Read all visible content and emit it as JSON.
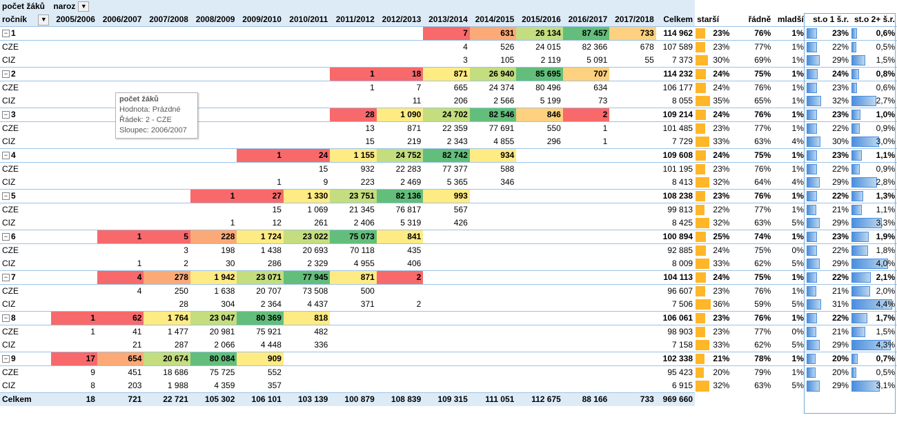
{
  "header": {
    "value_field": "počet žáků",
    "column_field": "naroz",
    "row_field": "ročník",
    "columns": [
      "2005/2006",
      "2006/2007",
      "2007/2008",
      "2008/2009",
      "2009/2010",
      "2010/2011",
      "2011/2012",
      "2012/2013",
      "2013/2014",
      "2014/2015",
      "2015/2016",
      "2016/2017",
      "2017/2018"
    ],
    "total_label": "Celkem",
    "extra_columns": [
      "starší",
      "řádně",
      "mladší",
      "st.o 1 š.r.",
      "st.o 2+ š.r."
    ]
  },
  "colors": {
    "header_bg": "#ddebf7",
    "red": "#f8696b",
    "orange": "#fbaa77",
    "light_orange": "#fdd17f",
    "yellow": "#ffeb84",
    "light_green": "#c4dd7f",
    "green": "#63be7b",
    "bar_orange": "#ffb628",
    "bar_blue": "#4a8ede"
  },
  "rows": [
    {
      "level": 1,
      "label": "1",
      "cells": [
        "",
        "",
        "",
        "",
        "",
        "",
        "",
        "",
        "7",
        "631",
        "26 134",
        "87 457",
        "733"
      ],
      "colors": [
        "",
        "",
        "",
        "",
        "",
        "",
        "",
        "",
        "red",
        "orange",
        "light_green",
        "green",
        "light_orange"
      ],
      "total": "114 962",
      "starsi": "23%",
      "radne": "76%",
      "mladsi": "1%",
      "st1": "23%",
      "st2": "0,6%",
      "b_starsi": 0.23,
      "b_st1": 0.23,
      "b_st2": 0.006
    },
    {
      "level": 2,
      "label": "CZE",
      "cells": [
        "",
        "",
        "",
        "",
        "",
        "",
        "",
        "",
        "4",
        "526",
        "24 015",
        "82 366",
        "678"
      ],
      "total": "107 589",
      "starsi": "23%",
      "radne": "77%",
      "mladsi": "1%",
      "st1": "22%",
      "st2": "0,5%",
      "b_starsi": 0.23,
      "b_st1": 0.22,
      "b_st2": 0.005
    },
    {
      "level": 2,
      "label": "CIZ",
      "cells": [
        "",
        "",
        "",
        "",
        "",
        "",
        "",
        "",
        "3",
        "105",
        "2 119",
        "5 091",
        "55"
      ],
      "total": "7 373",
      "starsi": "30%",
      "radne": "69%",
      "mladsi": "1%",
      "st1": "29%",
      "st2": "1,5%",
      "b_starsi": 0.3,
      "b_st1": 0.29,
      "b_st2": 0.015
    },
    {
      "level": 1,
      "label": "2",
      "cells": [
        "",
        "",
        "",
        "",
        "",
        "",
        "1",
        "18",
        "871",
        "26 940",
        "85 695",
        "707",
        ""
      ],
      "colors": [
        "",
        "",
        "",
        "",
        "",
        "",
        "red",
        "red",
        "yellow",
        "light_green",
        "green",
        "light_orange",
        ""
      ],
      "total": "114 232",
      "starsi": "24%",
      "radne": "75%",
      "mladsi": "1%",
      "st1": "24%",
      "st2": "0,8%",
      "b_starsi": 0.24,
      "b_st1": 0.24,
      "b_st2": 0.008
    },
    {
      "level": 2,
      "label": "CZE",
      "cells": [
        "",
        "",
        "",
        "",
        "",
        "",
        "1",
        "7",
        "665",
        "24 374",
        "80 496",
        "634",
        ""
      ],
      "total": "106 177",
      "starsi": "24%",
      "radne": "76%",
      "mladsi": "1%",
      "st1": "23%",
      "st2": "0,6%",
      "b_starsi": 0.24,
      "b_st1": 0.23,
      "b_st2": 0.006
    },
    {
      "level": 2,
      "label": "CIZ",
      "cells": [
        "",
        "",
        "",
        "",
        "",
        "",
        "",
        "11",
        "206",
        "2 566",
        "5 199",
        "73",
        ""
      ],
      "total": "8 055",
      "starsi": "35%",
      "radne": "65%",
      "mladsi": "1%",
      "st1": "32%",
      "st2": "2,7%",
      "b_starsi": 0.35,
      "b_st1": 0.32,
      "b_st2": 0.027
    },
    {
      "level": 1,
      "label": "3",
      "cells": [
        "",
        "",
        "",
        "",
        "",
        "",
        "28",
        "1 090",
        "24 702",
        "82 546",
        "846",
        "2",
        ""
      ],
      "colors": [
        "",
        "",
        "",
        "",
        "",
        "",
        "red",
        "yellow",
        "light_green",
        "green",
        "light_orange",
        "red",
        ""
      ],
      "total": "109 214",
      "starsi": "24%",
      "radne": "76%",
      "mladsi": "1%",
      "st1": "23%",
      "st2": "1,0%",
      "b_starsi": 0.24,
      "b_st1": 0.23,
      "b_st2": 0.01
    },
    {
      "level": 2,
      "label": "CZE",
      "cells": [
        "",
        "",
        "",
        "",
        "",
        "",
        "13",
        "871",
        "22 359",
        "77 691",
        "550",
        "1",
        ""
      ],
      "total": "101 485",
      "starsi": "23%",
      "radne": "77%",
      "mladsi": "1%",
      "st1": "22%",
      "st2": "0,9%",
      "b_starsi": 0.23,
      "b_st1": 0.22,
      "b_st2": 0.009
    },
    {
      "level": 2,
      "label": "CIZ",
      "cells": [
        "",
        "",
        "",
        "",
        "",
        "",
        "15",
        "219",
        "2 343",
        "4 855",
        "296",
        "1",
        ""
      ],
      "total": "7 729",
      "starsi": "33%",
      "radne": "63%",
      "mladsi": "4%",
      "st1": "30%",
      "st2": "3,0%",
      "b_starsi": 0.33,
      "b_st1": 0.3,
      "b_st2": 0.03
    },
    {
      "level": 1,
      "label": "4",
      "cells": [
        "",
        "",
        "",
        "",
        "1",
        "24",
        "1 155",
        "24 752",
        "82 742",
        "934",
        "",
        "",
        ""
      ],
      "colors": [
        "",
        "",
        "",
        "",
        "red",
        "red",
        "yellow",
        "light_green",
        "green",
        "yellow",
        "",
        "",
        ""
      ],
      "total": "109 608",
      "starsi": "24%",
      "radne": "75%",
      "mladsi": "1%",
      "st1": "23%",
      "st2": "1,1%",
      "b_starsi": 0.24,
      "b_st1": 0.23,
      "b_st2": 0.011
    },
    {
      "level": 2,
      "label": "CZE",
      "cells": [
        "",
        "",
        "",
        "",
        "",
        "15",
        "932",
        "22 283",
        "77 377",
        "588",
        "",
        "",
        ""
      ],
      "total": "101 195",
      "starsi": "23%",
      "radne": "76%",
      "mladsi": "1%",
      "st1": "22%",
      "st2": "0,9%",
      "b_starsi": 0.23,
      "b_st1": 0.22,
      "b_st2": 0.009
    },
    {
      "level": 2,
      "label": "CIZ",
      "cells": [
        "",
        "",
        "",
        "",
        "1",
        "9",
        "223",
        "2 469",
        "5 365",
        "346",
        "",
        "",
        ""
      ],
      "total": "8 413",
      "starsi": "32%",
      "radne": "64%",
      "mladsi": "4%",
      "st1": "29%",
      "st2": "2,8%",
      "b_starsi": 0.32,
      "b_st1": 0.29,
      "b_st2": 0.028
    },
    {
      "level": 1,
      "label": "5",
      "cells": [
        "",
        "",
        "",
        "1",
        "27",
        "1 330",
        "23 751",
        "82 136",
        "993",
        "",
        "",
        "",
        ""
      ],
      "colors": [
        "",
        "",
        "",
        "red",
        "red",
        "yellow",
        "light_green",
        "green",
        "yellow",
        "",
        "",
        "",
        ""
      ],
      "total": "108 238",
      "starsi": "23%",
      "radne": "76%",
      "mladsi": "1%",
      "st1": "22%",
      "st2": "1,3%",
      "b_starsi": 0.23,
      "b_st1": 0.22,
      "b_st2": 0.013
    },
    {
      "level": 2,
      "label": "CZE",
      "cells": [
        "",
        "",
        "",
        "",
        "15",
        "1 069",
        "21 345",
        "76 817",
        "567",
        "",
        "",
        "",
        ""
      ],
      "total": "99 813",
      "starsi": "22%",
      "radne": "77%",
      "mladsi": "1%",
      "st1": "21%",
      "st2": "1,1%",
      "b_starsi": 0.22,
      "b_st1": 0.21,
      "b_st2": 0.011
    },
    {
      "level": 2,
      "label": "CIZ",
      "cells": [
        "",
        "",
        "",
        "1",
        "12",
        "261",
        "2 406",
        "5 319",
        "426",
        "",
        "",
        "",
        ""
      ],
      "total": "8 425",
      "starsi": "32%",
      "radne": "63%",
      "mladsi": "5%",
      "st1": "29%",
      "st2": "3,3%",
      "b_starsi": 0.32,
      "b_st1": 0.29,
      "b_st2": 0.033
    },
    {
      "level": 1,
      "label": "6",
      "cells": [
        "",
        "1",
        "5",
        "228",
        "1 724",
        "23 022",
        "75 073",
        "841",
        "",
        "",
        "",
        "",
        ""
      ],
      "colors": [
        "",
        "red",
        "red",
        "orange",
        "yellow",
        "light_green",
        "green",
        "yellow",
        "",
        "",
        "",
        "",
        ""
      ],
      "total": "100 894",
      "starsi": "25%",
      "radne": "74%",
      "mladsi": "1%",
      "st1": "23%",
      "st2": "1,9%",
      "b_starsi": 0.25,
      "b_st1": 0.23,
      "b_st2": 0.019
    },
    {
      "level": 2,
      "label": "CZE",
      "cells": [
        "",
        "",
        "3",
        "198",
        "1 438",
        "20 693",
        "70 118",
        "435",
        "",
        "",
        "",
        "",
        ""
      ],
      "total": "92 885",
      "starsi": "24%",
      "radne": "75%",
      "mladsi": "0%",
      "st1": "22%",
      "st2": "1,8%",
      "b_starsi": 0.24,
      "b_st1": 0.22,
      "b_st2": 0.018
    },
    {
      "level": 2,
      "label": "CIZ",
      "cells": [
        "",
        "1",
        "2",
        "30",
        "286",
        "2 329",
        "4 955",
        "406",
        "",
        "",
        "",
        "",
        ""
      ],
      "total": "8 009",
      "starsi": "33%",
      "radne": "62%",
      "mladsi": "5%",
      "st1": "29%",
      "st2": "4,0%",
      "b_starsi": 0.33,
      "b_st1": 0.29,
      "b_st2": 0.04
    },
    {
      "level": 1,
      "label": "7",
      "cells": [
        "",
        "4",
        "278",
        "1 942",
        "23 071",
        "77 945",
        "871",
        "2",
        "",
        "",
        "",
        "",
        ""
      ],
      "colors": [
        "",
        "red",
        "orange",
        "yellow",
        "light_green",
        "green",
        "yellow",
        "red",
        "",
        "",
        "",
        "",
        ""
      ],
      "total": "104 113",
      "starsi": "24%",
      "radne": "75%",
      "mladsi": "1%",
      "st1": "22%",
      "st2": "2,1%",
      "b_starsi": 0.24,
      "b_st1": 0.22,
      "b_st2": 0.021
    },
    {
      "level": 2,
      "label": "CZE",
      "cells": [
        "",
        "4",
        "250",
        "1 638",
        "20 707",
        "73 508",
        "500",
        "",
        "",
        "",
        "",
        "",
        ""
      ],
      "total": "96 607",
      "starsi": "23%",
      "radne": "76%",
      "mladsi": "1%",
      "st1": "21%",
      "st2": "2,0%",
      "b_starsi": 0.23,
      "b_st1": 0.21,
      "b_st2": 0.02
    },
    {
      "level": 2,
      "label": "CIZ",
      "cells": [
        "",
        "",
        "28",
        "304",
        "2 364",
        "4 437",
        "371",
        "2",
        "",
        "",
        "",
        "",
        ""
      ],
      "total": "7 506",
      "starsi": "36%",
      "radne": "59%",
      "mladsi": "5%",
      "st1": "31%",
      "st2": "4,4%",
      "b_starsi": 0.36,
      "b_st1": 0.31,
      "b_st2": 0.044
    },
    {
      "level": 1,
      "label": "8",
      "cells": [
        "1",
        "62",
        "1 764",
        "23 047",
        "80 369",
        "818",
        "",
        "",
        "",
        "",
        "",
        "",
        ""
      ],
      "colors": [
        "red",
        "red",
        "yellow",
        "light_green",
        "green",
        "yellow",
        "",
        "",
        "",
        "",
        "",
        "",
        ""
      ],
      "total": "106 061",
      "starsi": "23%",
      "radne": "76%",
      "mladsi": "1%",
      "st1": "22%",
      "st2": "1,7%",
      "b_starsi": 0.23,
      "b_st1": 0.22,
      "b_st2": 0.017
    },
    {
      "level": 2,
      "label": "CZE",
      "cells": [
        "1",
        "41",
        "1 477",
        "20 981",
        "75 921",
        "482",
        "",
        "",
        "",
        "",
        "",
        "",
        ""
      ],
      "total": "98 903",
      "starsi": "23%",
      "radne": "77%",
      "mladsi": "0%",
      "st1": "21%",
      "st2": "1,5%",
      "b_starsi": 0.23,
      "b_st1": 0.21,
      "b_st2": 0.015
    },
    {
      "level": 2,
      "label": "CIZ",
      "cells": [
        "",
        "21",
        "287",
        "2 066",
        "4 448",
        "336",
        "",
        "",
        "",
        "",
        "",
        "",
        ""
      ],
      "total": "7 158",
      "starsi": "33%",
      "radne": "62%",
      "mladsi": "5%",
      "st1": "29%",
      "st2": "4,3%",
      "b_starsi": 0.33,
      "b_st1": 0.29,
      "b_st2": 0.043
    },
    {
      "level": 1,
      "label": "9",
      "cells": [
        "17",
        "654",
        "20 674",
        "80 084",
        "909",
        "",
        "",
        "",
        "",
        "",
        "",
        "",
        ""
      ],
      "colors": [
        "red",
        "orange",
        "light_green",
        "green",
        "yellow",
        "",
        "",
        "",
        "",
        "",
        "",
        "",
        ""
      ],
      "total": "102 338",
      "starsi": "21%",
      "radne": "78%",
      "mladsi": "1%",
      "st1": "20%",
      "st2": "0,7%",
      "b_starsi": 0.21,
      "b_st1": 0.2,
      "b_st2": 0.007
    },
    {
      "level": 2,
      "label": "CZE",
      "cells": [
        "9",
        "451",
        "18 686",
        "75 725",
        "552",
        "",
        "",
        "",
        "",
        "",
        "",
        "",
        ""
      ],
      "total": "95 423",
      "starsi": "20%",
      "radne": "79%",
      "mladsi": "1%",
      "st1": "20%",
      "st2": "0,5%",
      "b_starsi": 0.2,
      "b_st1": 0.2,
      "b_st2": 0.005
    },
    {
      "level": 2,
      "label": "CIZ",
      "cells": [
        "8",
        "203",
        "1 988",
        "4 359",
        "357",
        "",
        "",
        "",
        "",
        "",
        "",
        "",
        ""
      ],
      "total": "6 915",
      "starsi": "32%",
      "radne": "63%",
      "mladsi": "5%",
      "st1": "29%",
      "st2": "3,1%",
      "b_starsi": 0.32,
      "b_st1": 0.29,
      "b_st2": 0.031
    }
  ],
  "grand_total": {
    "label": "Celkem",
    "cells": [
      "18",
      "721",
      "22 721",
      "105 302",
      "106 101",
      "103 139",
      "100 879",
      "108 839",
      "109 315",
      "111 051",
      "112 675",
      "88 166",
      "733"
    ],
    "total": "969 660"
  },
  "tooltip": {
    "title": "počet žáků",
    "line1": "Hodnota: Prázdné",
    "line2": "Řádek: 2 - CZE",
    "line3": "Sloupec: 2006/2007"
  },
  "icons": {
    "dropdown": "dropdown-arrow-icon",
    "filter": "filter-icon",
    "collapse": "collapse-minus-icon"
  }
}
